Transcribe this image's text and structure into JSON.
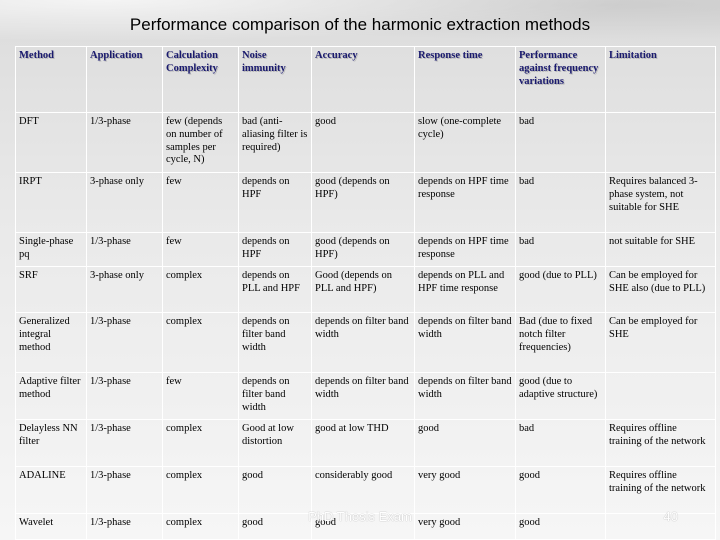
{
  "title": "Performance comparison of the harmonic extraction methods",
  "headers": [
    "Method",
    "Application",
    "Calculation Complexity",
    "Noise immunity",
    "Accuracy",
    "Response time",
    "Performance against frequency variations",
    "Limitation"
  ],
  "rows": [
    [
      "DFT",
      "1/3-phase",
      "few (depends on number of samples per cycle, N)",
      "bad (anti-aliasing filter is required)",
      "good",
      "slow (one-complete cycle)",
      "bad",
      ""
    ],
    [
      "IRPT",
      "3-phase only",
      "few",
      "depends on HPF",
      "good (depends on HPF)",
      "depends on HPF time response",
      "bad",
      "Requires balanced 3-phase system, not suitable for SHE"
    ],
    [
      "Single-phase pq",
      "1/3-phase",
      "few",
      "depends on HPF",
      "good (depends on HPF)",
      "depends on HPF time response",
      "bad",
      "not suitable for SHE"
    ],
    [
      "SRF",
      "3-phase only",
      "complex",
      "depends on PLL and HPF",
      "Good (depends on PLL and HPF)",
      "depends on PLL and HPF time response",
      "good (due to PLL)",
      "Can be employed for SHE also (due to PLL)"
    ],
    [
      "Generalized integral method",
      "1/3-phase",
      "complex",
      "depends on filter band width",
      "depends on filter band width",
      "depends on filter band width",
      "Bad (due to fixed notch filter frequencies)",
      "Can be employed for SHE"
    ],
    [
      "Adaptive filter method",
      "1/3-phase",
      "few",
      "depends on filter band width",
      "depends on filter band width",
      "depends on filter band width",
      "good (due to adaptive structure)",
      ""
    ],
    [
      "Delayless NN filter",
      "1/3-phase",
      "complex",
      "Good at low distortion",
      "good at low THD",
      "good",
      "bad",
      "Requires offline training of the network"
    ],
    [
      "ADALINE",
      "1/3-phase",
      "complex",
      "good",
      "considerably good",
      "very good",
      "good",
      "Requires offline training of the network"
    ],
    [
      "Wavelet",
      "1/3-phase",
      "complex",
      "good",
      "good",
      "very good",
      "good",
      ""
    ]
  ],
  "footer": "PhD Thesis Exam",
  "slide_number": "40"
}
